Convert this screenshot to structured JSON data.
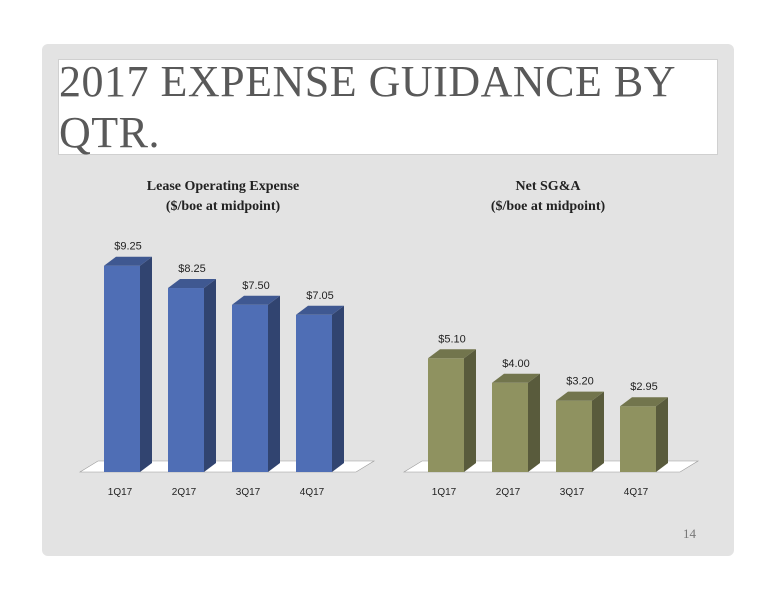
{
  "slide": {
    "title": "2017 EXPENSE GUIDANCE BY QTR.",
    "page_number": "14"
  },
  "chart_data": [
    {
      "type": "bar",
      "title": "Lease Operating Expense",
      "subtitle": "($/boe at midpoint)",
      "categories": [
        "1Q17",
        "2Q17",
        "3Q17",
        "4Q17"
      ],
      "values": [
        9.25,
        8.25,
        7.5,
        7.05
      ],
      "value_labels": [
        "$9.25",
        "$8.25",
        "$7.50",
        "$7.05"
      ],
      "ylim": [
        0,
        10
      ],
      "grid": false,
      "color": "#4f6eb5"
    },
    {
      "type": "bar",
      "title": "Net SG&A",
      "subtitle": "($/boe at midpoint)",
      "categories": [
        "1Q17",
        "2Q17",
        "3Q17",
        "4Q17"
      ],
      "values": [
        5.1,
        4.0,
        3.2,
        2.95
      ],
      "value_labels": [
        "$5.10",
        "$4.00",
        "$3.20",
        "$2.95"
      ],
      "ylim": [
        0,
        10
      ],
      "grid": false,
      "color": "#8f9260"
    }
  ]
}
